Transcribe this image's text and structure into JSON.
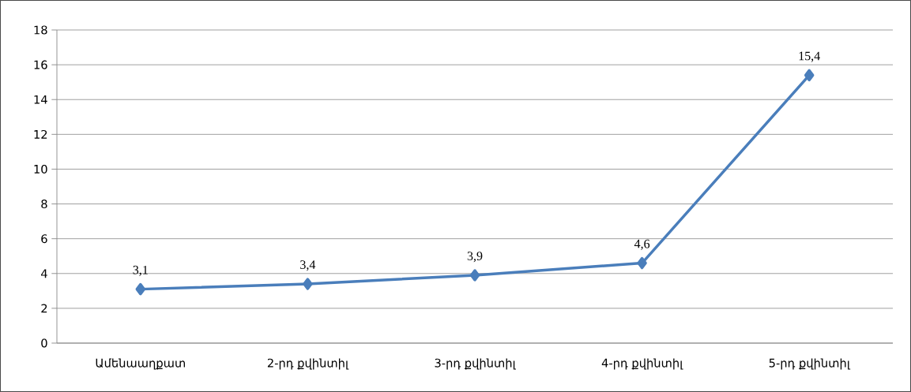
{
  "chart_data": {
    "type": "line",
    "categories": [
      "Ամենաաղքատ",
      "2-րդ քվինտիլ",
      "3-րդ քվինտիլ",
      "4-րդ քվինտիլ",
      "5-րդ քվինտիլ"
    ],
    "values": [
      3.1,
      3.4,
      3.9,
      4.6,
      15.4
    ],
    "value_labels": [
      "3,1",
      "3,4",
      "3,9",
      "4,6",
      "15,4"
    ],
    "color": "#4a7ebb",
    "marker": "diamond",
    "line_style": "solid",
    "ylim": [
      0,
      18
    ],
    "yticks": [
      0,
      2,
      4,
      6,
      8,
      10,
      12,
      14,
      16,
      18
    ],
    "grid": "y"
  }
}
